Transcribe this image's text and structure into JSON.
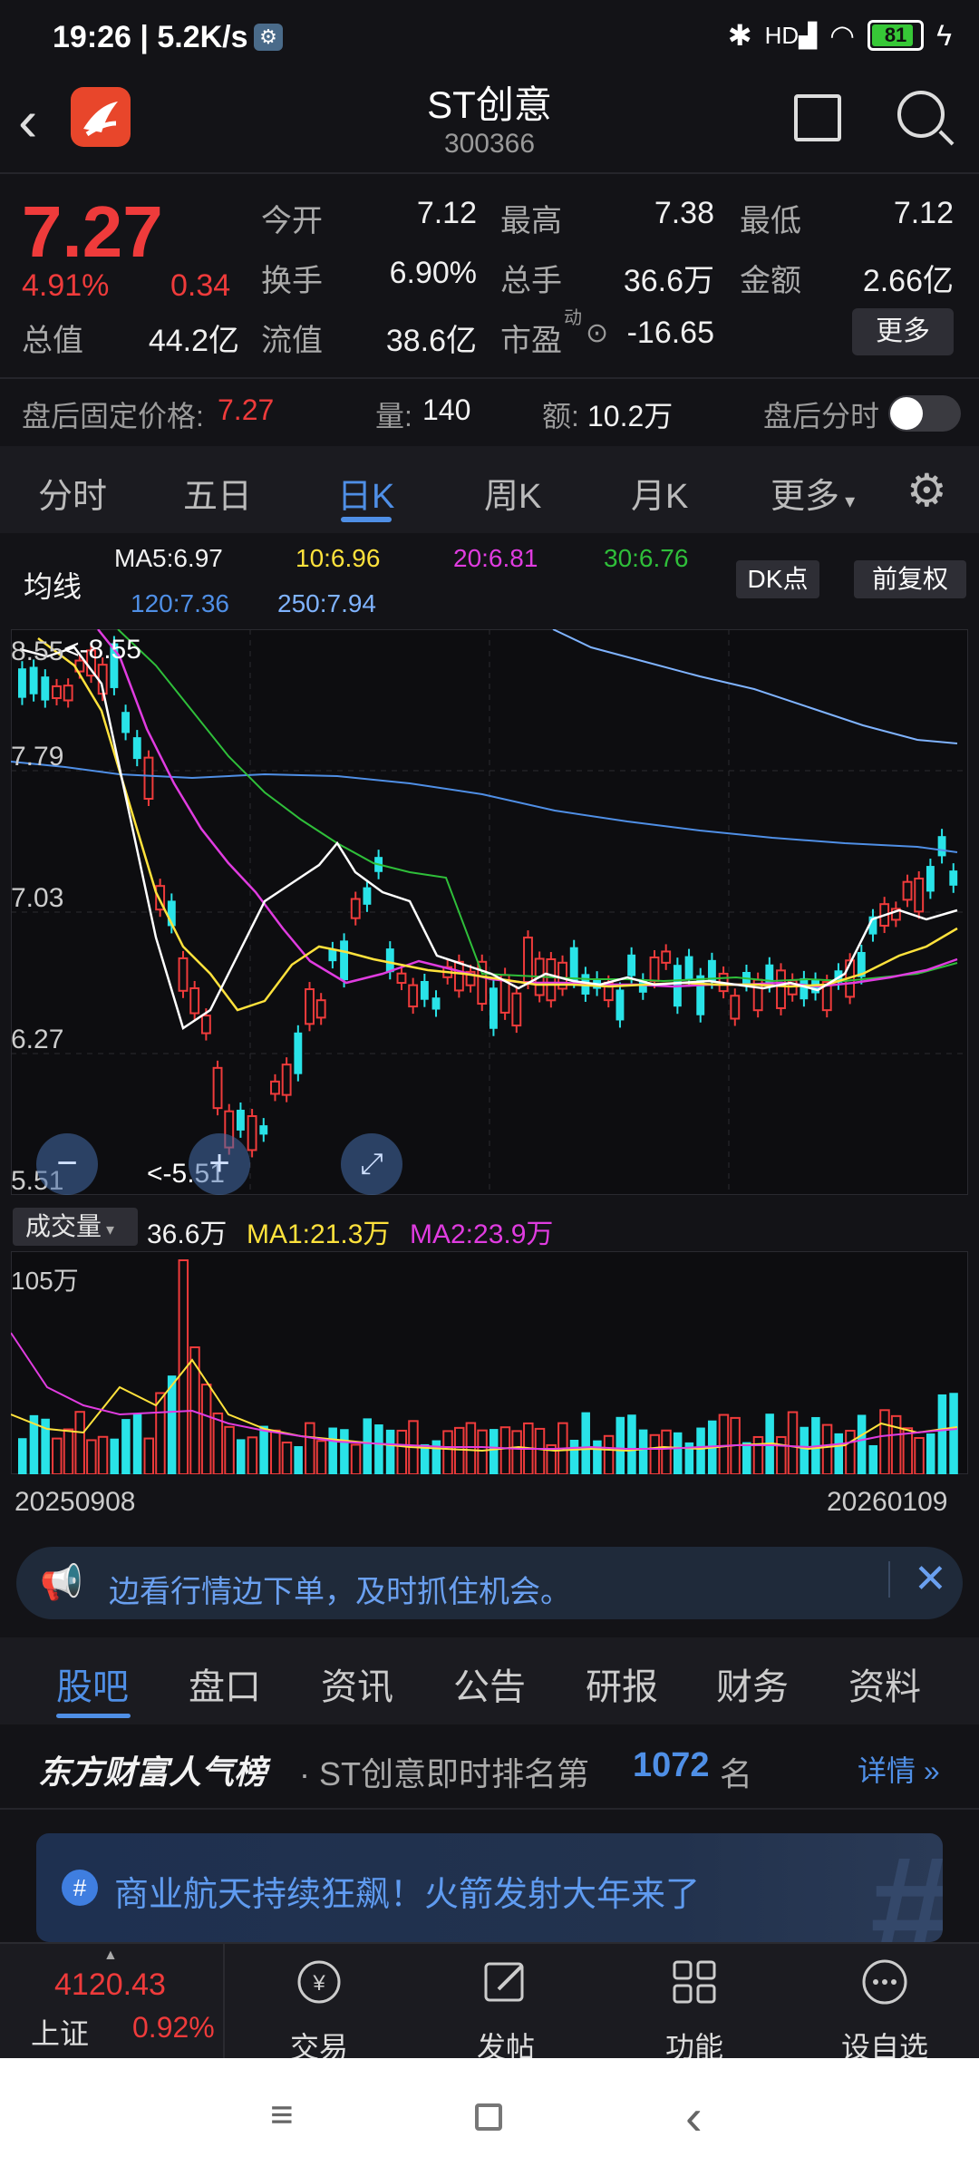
{
  "status_bar": {
    "time": "19:26 | 5.2K/s",
    "battery": "81",
    "network": "HD"
  },
  "header": {
    "title": "ST创意",
    "code": "300366"
  },
  "quote": {
    "price": "7.27",
    "change_pct": "4.91%",
    "change": "0.34",
    "open_label": "今开",
    "open": "7.12",
    "high_label": "最高",
    "high": "7.38",
    "low_label": "最低",
    "low": "7.12",
    "turnover_label": "换手",
    "turnover": "6.90%",
    "volume_label": "总手",
    "volume": "36.6万",
    "amount_label": "金额",
    "amount": "2.66亿",
    "mktcap_label": "总值",
    "mktcap": "44.2亿",
    "float_label": "流值",
    "float": "38.6亿",
    "pe_label": "市盈",
    "pe_sup": "动",
    "pe": "-16.65",
    "more": "更多"
  },
  "after_hours": {
    "price_label": "盘后固定价格:",
    "price": "7.27",
    "vol_label": "量:",
    "vol": "140",
    "amt_label": "额:",
    "amt": "10.2万",
    "toggle_label": "盘后分时"
  },
  "tabs": [
    "分时",
    "五日",
    "日K",
    "周K",
    "月K",
    "更多"
  ],
  "ma": {
    "label": "均线",
    "ma5": "MA5:6.97",
    "ma10": "10:6.96",
    "ma20": "20:6.81",
    "ma30": "30:6.76",
    "ma120": "120:7.36",
    "ma250": "250:7.94",
    "dk": "DK点",
    "adjust": "前复权"
  },
  "kchart": {
    "y_labels": [
      "8.55",
      "7.79",
      "7.03",
      "6.27",
      "5.51"
    ],
    "high_mark": "<-8.55",
    "low_mark": "<-5.51"
  },
  "volume": {
    "selector": "成交量",
    "value": "36.6万",
    "ma1": "MA1:21.3万",
    "ma2": "MA2:23.9万",
    "max_label": "105万",
    "start_date": "20250908",
    "end_date": "20260109"
  },
  "promo": {
    "text": "边看行情边下单，及时抓住机会。"
  },
  "subtabs": [
    "股吧",
    "盘口",
    "资讯",
    "公告",
    "研报",
    "财务",
    "资料"
  ],
  "popularity": {
    "brand": "东方财富人气榜",
    "prefix": "· ST创意即时排名第",
    "rank": "1072",
    "suffix": "名",
    "detail": "详情"
  },
  "banner": {
    "text": "商业航天持续狂飙！火箭发射大年来了"
  },
  "bottom_bar": {
    "index_value": "4120.43",
    "index_name": "上证",
    "index_pct": "0.92%",
    "trade": "交易",
    "post": "发帖",
    "function": "功能",
    "watch": "设自选"
  },
  "colors": {
    "up": "#ef3b3b",
    "down": "#29e3e8",
    "accent": "#4f8fe6",
    "ma5": "#ffffff",
    "ma10": "#ffe23c",
    "ma20": "#e03ce0",
    "ma30": "#2fbf3a",
    "ma120": "#4f8fe6",
    "ma250": "#7fb3ff"
  }
}
